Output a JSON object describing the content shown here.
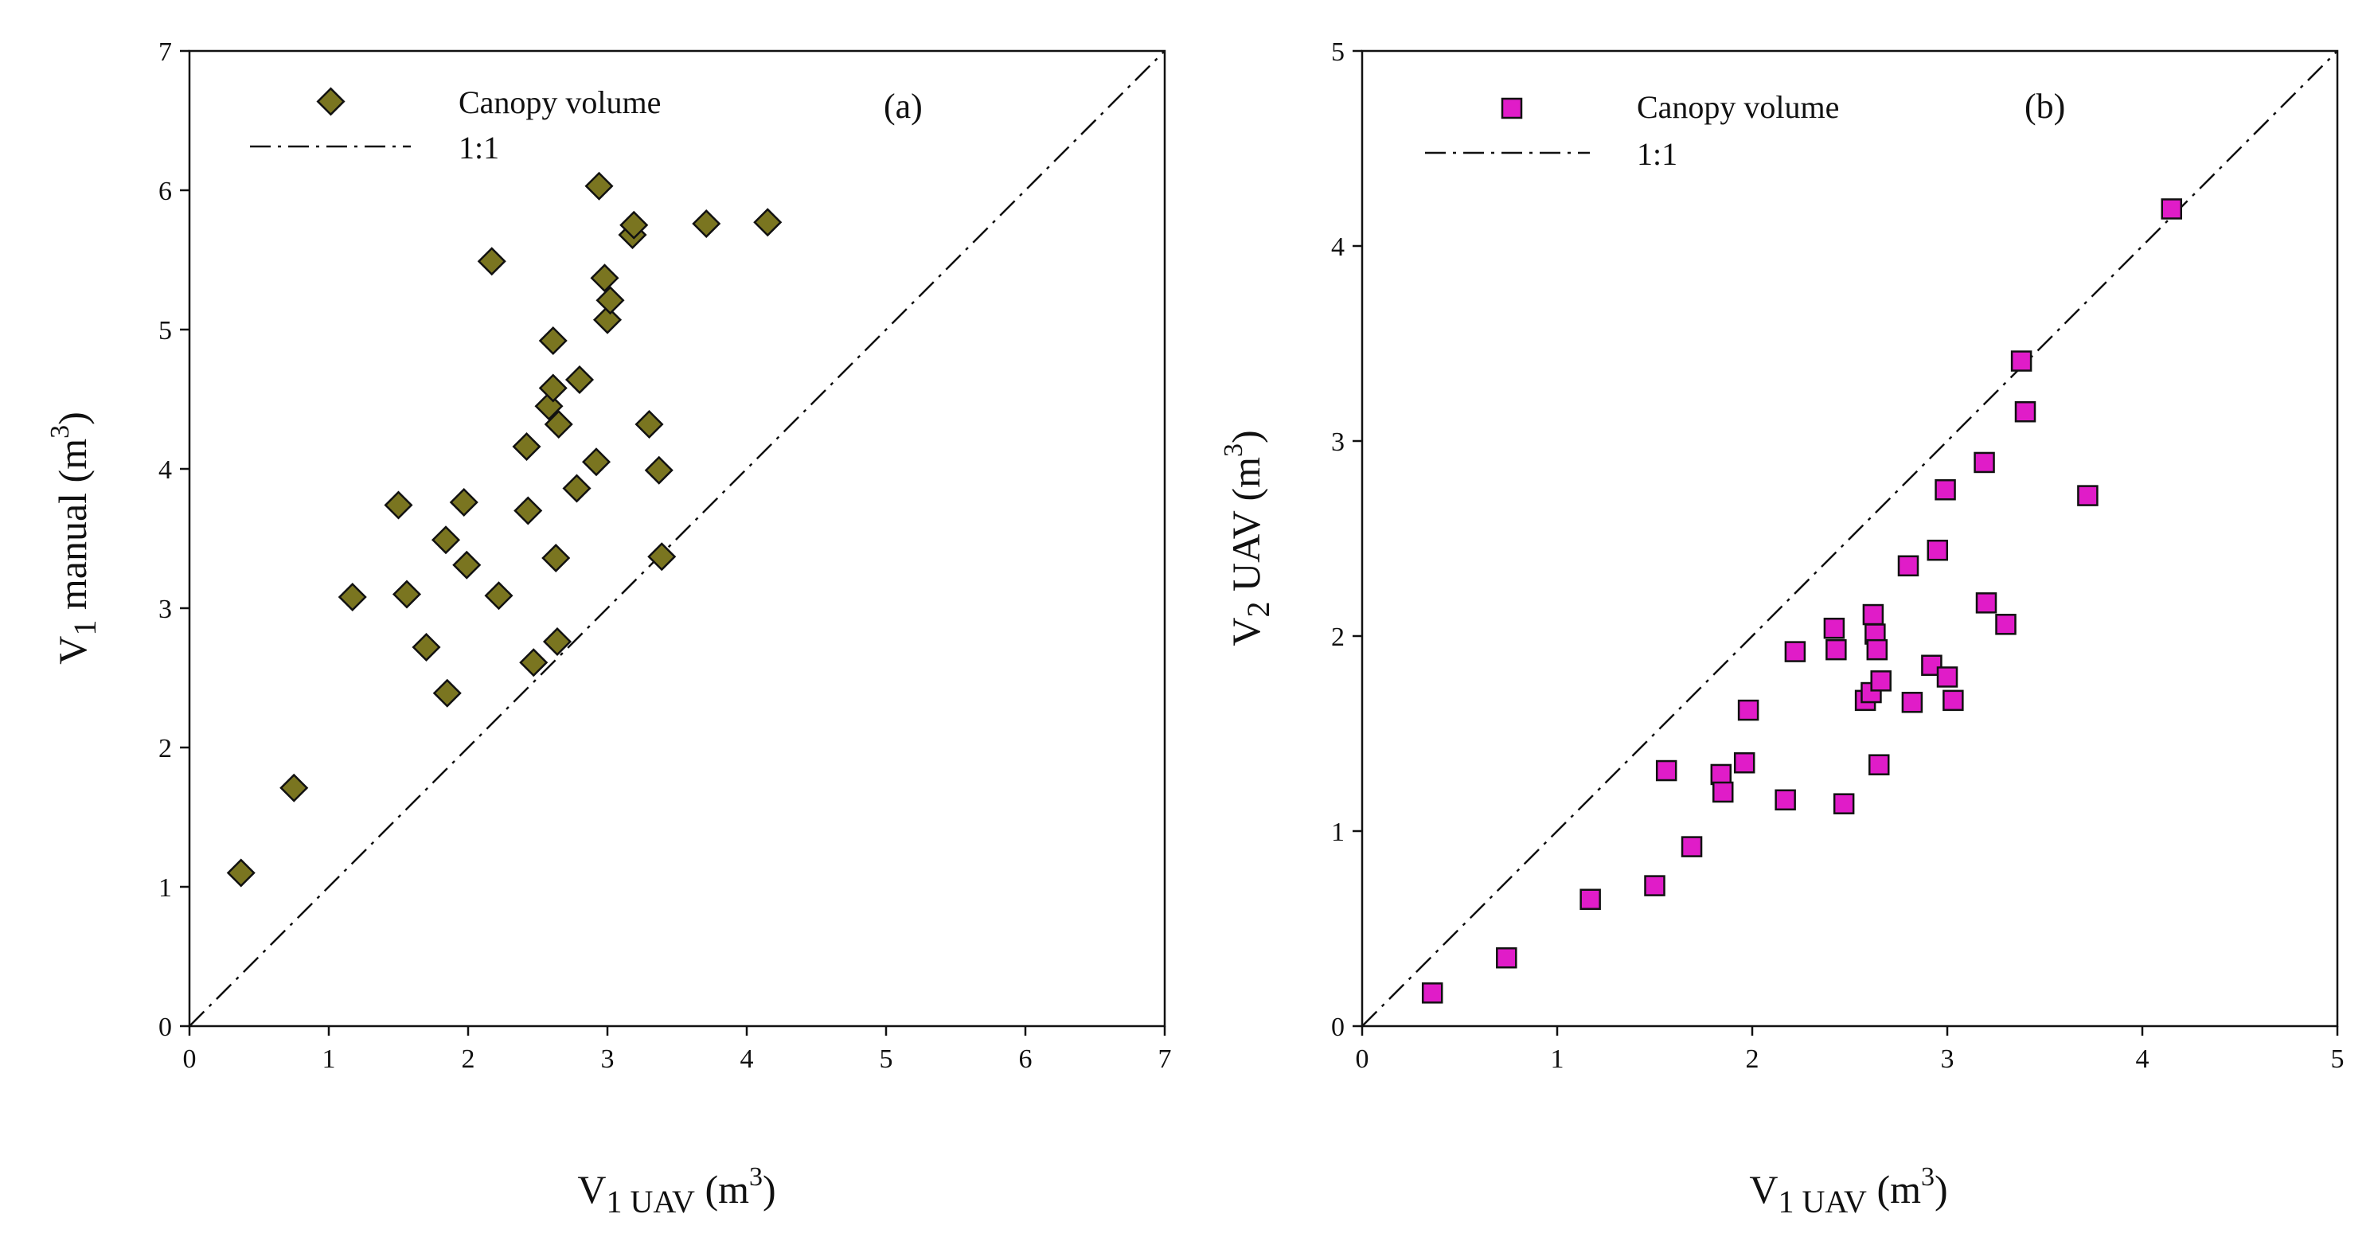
{
  "colors": {
    "diamond": "#7a7520",
    "square": "#e01cc8",
    "ink": "#111111"
  },
  "chart_data": [
    {
      "type": "scatter",
      "panel_label": "(a)",
      "marker": "diamond",
      "xlabel": {
        "main": "V",
        "sub": "1 UAV",
        "sup_text": " (m",
        "sup": "3",
        "close": ")"
      },
      "ylabel": {
        "main": "V",
        "sub": "1",
        "rest": " manual (m",
        "sup": "3",
        "close": ")"
      },
      "xlim": [
        0,
        7
      ],
      "ylim": [
        0,
        7
      ],
      "xticks": [
        0,
        1,
        2,
        3,
        4,
        5,
        6,
        7
      ],
      "yticks": [
        0,
        1,
        2,
        3,
        4,
        5,
        6,
        7
      ],
      "legend": {
        "position": "top-left",
        "series_label": "Canopy volume",
        "line_label": "1:1"
      },
      "reference_line": "1:1",
      "series": [
        {
          "name": "Canopy volume",
          "points": [
            [
              0.37,
              1.1
            ],
            [
              0.75,
              1.71
            ],
            [
              1.17,
              3.08
            ],
            [
              1.5,
              3.74
            ],
            [
              1.56,
              3.1
            ],
            [
              1.7,
              2.72
            ],
            [
              1.84,
              3.49
            ],
            [
              1.85,
              2.39
            ],
            [
              1.97,
              3.76
            ],
            [
              1.99,
              3.31
            ],
            [
              2.17,
              5.49
            ],
            [
              2.22,
              3.09
            ],
            [
              2.42,
              4.16
            ],
            [
              2.43,
              3.7
            ],
            [
              2.47,
              2.61
            ],
            [
              2.58,
              4.45
            ],
            [
              2.61,
              4.58
            ],
            [
              2.61,
              4.92
            ],
            [
              2.63,
              3.36
            ],
            [
              2.64,
              2.76
            ],
            [
              2.65,
              4.32
            ],
            [
              2.78,
              3.86
            ],
            [
              2.8,
              4.64
            ],
            [
              2.92,
              4.05
            ],
            [
              2.94,
              6.03
            ],
            [
              2.98,
              5.37
            ],
            [
              3.0,
              5.07
            ],
            [
              3.02,
              5.21
            ],
            [
              3.18,
              5.68
            ],
            [
              3.19,
              5.75
            ],
            [
              3.3,
              4.32
            ],
            [
              3.37,
              3.99
            ],
            [
              3.39,
              3.37
            ],
            [
              3.71,
              5.76
            ],
            [
              4.15,
              5.77
            ]
          ]
        }
      ]
    },
    {
      "type": "scatter",
      "panel_label": "(b)",
      "marker": "square",
      "xlabel": {
        "main": "V",
        "sub": "1 UAV",
        "sup_text": " (m",
        "sup": "3",
        "close": ")"
      },
      "ylabel": {
        "main": "V",
        "sub": "2",
        "rest": " UAV (m",
        "sup": "3",
        "close": ")"
      },
      "xlim": [
        0,
        5
      ],
      "ylim": [
        0,
        5
      ],
      "xticks": [
        0,
        1,
        2,
        3,
        4,
        5
      ],
      "yticks": [
        0,
        1,
        2,
        3,
        4,
        5
      ],
      "legend": {
        "position": "top-left",
        "series_label": "Canopy volume",
        "line_label": "1:1"
      },
      "reference_line": "1:1",
      "series": [
        {
          "name": "Canopy volume",
          "points": [
            [
              0.36,
              0.17
            ],
            [
              0.74,
              0.35
            ],
            [
              1.17,
              0.65
            ],
            [
              1.5,
              0.72
            ],
            [
              1.56,
              1.31
            ],
            [
              1.69,
              0.92
            ],
            [
              1.84,
              1.29
            ],
            [
              1.85,
              1.2
            ],
            [
              1.96,
              1.35
            ],
            [
              1.98,
              1.62
            ],
            [
              2.17,
              1.16
            ],
            [
              2.22,
              1.92
            ],
            [
              2.42,
              2.04
            ],
            [
              2.43,
              1.93
            ],
            [
              2.47,
              1.14
            ],
            [
              2.58,
              1.67
            ],
            [
              2.61,
              1.71
            ],
            [
              2.62,
              2.11
            ],
            [
              2.63,
              2.01
            ],
            [
              2.64,
              1.93
            ],
            [
              2.65,
              1.34
            ],
            [
              2.66,
              1.77
            ],
            [
              2.8,
              2.36
            ],
            [
              2.82,
              1.66
            ],
            [
              2.92,
              1.85
            ],
            [
              2.95,
              2.44
            ],
            [
              2.99,
              2.75
            ],
            [
              3.0,
              1.79
            ],
            [
              3.03,
              1.67
            ],
            [
              3.19,
              2.89
            ],
            [
              3.2,
              2.17
            ],
            [
              3.3,
              2.06
            ],
            [
              3.38,
              3.41
            ],
            [
              3.4,
              3.15
            ],
            [
              3.72,
              2.72
            ],
            [
              4.15,
              4.19
            ]
          ]
        }
      ]
    }
  ]
}
